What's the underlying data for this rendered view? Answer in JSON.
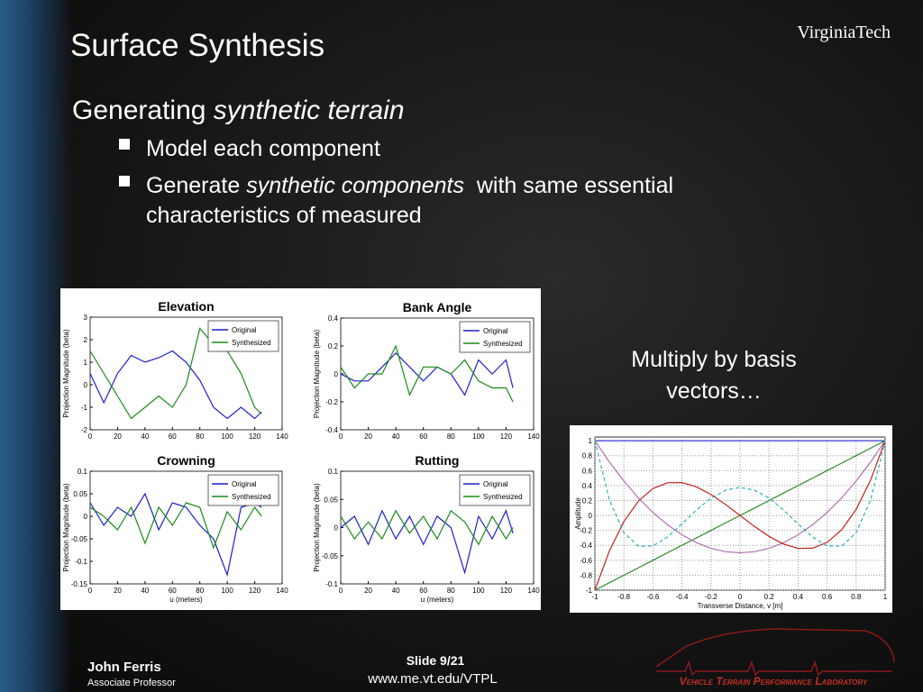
{
  "header": {
    "title": "Surface Synthesis",
    "logo": "VirginiaTech"
  },
  "body": {
    "heading": {
      "plain": "Generating ",
      "italic": "synthetic terrain"
    },
    "bullets": [
      {
        "text": "Model each component"
      },
      {
        "before": "Generate ",
        "italic": "synthetic components",
        "after": "  with same essential",
        "line2": "characteristics of measured"
      }
    ]
  },
  "callout": [
    "Multiply by basis",
    "vectors…"
  ],
  "chart_data": [
    {
      "type": "line",
      "title": "Elevation",
      "ylabel": "Projection Magnitude (beta)",
      "x": [
        0,
        10,
        20,
        30,
        40,
        50,
        60,
        70,
        80,
        90,
        100,
        110,
        120,
        125
      ],
      "series": [
        {
          "name": "Original",
          "color": "#1f1fd0",
          "values": [
            0.5,
            -0.8,
            0.5,
            1.3,
            1.0,
            1.2,
            1.5,
            1.0,
            0.2,
            -1.0,
            -1.5,
            -1.0,
            -1.5,
            -1.2
          ]
        },
        {
          "name": "Synthesized",
          "color": "#1a8a1a",
          "values": [
            1.5,
            0.5,
            -0.5,
            -1.5,
            -1.0,
            -0.5,
            -1.0,
            0,
            2.5,
            1.8,
            1.5,
            0.5,
            -1.0,
            -1.3
          ]
        }
      ],
      "xlim": [
        0,
        140
      ],
      "ylim": [
        -2,
        3
      ],
      "xticks": [
        0,
        20,
        40,
        60,
        80,
        100,
        120,
        140
      ],
      "yticks": [
        -2,
        -1,
        0,
        1,
        2,
        3
      ],
      "legend": "upper right"
    },
    {
      "type": "line",
      "title": "Bank Angle",
      "ylabel": "Projection Magnitude (beta)",
      "x": [
        0,
        10,
        20,
        30,
        40,
        50,
        60,
        70,
        80,
        90,
        100,
        110,
        120,
        125
      ],
      "series": [
        {
          "name": "Original",
          "color": "#1f1fd0",
          "values": [
            0,
            -0.05,
            -0.05,
            0.05,
            0.15,
            0.05,
            -0.05,
            0.05,
            0,
            -0.15,
            0.1,
            0,
            0.1,
            -0.1
          ]
        },
        {
          "name": "Synthesized",
          "color": "#1a8a1a",
          "values": [
            0.05,
            -0.1,
            0,
            0,
            0.2,
            -0.15,
            0.05,
            0.05,
            0,
            0.1,
            -0.05,
            -0.1,
            -0.1,
            -0.2
          ]
        }
      ],
      "xlim": [
        0,
        140
      ],
      "ylim": [
        -0.4,
        0.4
      ],
      "xticks": [
        0,
        20,
        40,
        60,
        80,
        100,
        120,
        140
      ],
      "yticks": [
        -0.4,
        -0.2,
        0,
        0.2,
        0.4
      ],
      "legend": "upper right"
    },
    {
      "type": "line",
      "title": "Crowning",
      "ylabel": "Projection Magnitude (beta)",
      "xlabel": "u (meters)",
      "x": [
        0,
        10,
        20,
        30,
        40,
        50,
        60,
        70,
        80,
        90,
        100,
        110,
        120,
        125
      ],
      "series": [
        {
          "name": "Original",
          "color": "#1f1fd0",
          "values": [
            0.03,
            -0.02,
            0.02,
            0,
            0.05,
            -0.03,
            0.03,
            0.02,
            -0.02,
            -0.05,
            -0.13,
            0.02,
            0.03,
            0.02
          ]
        },
        {
          "name": "Synthesized",
          "color": "#1a8a1a",
          "values": [
            0.02,
            0,
            -0.03,
            0.02,
            -0.06,
            0.02,
            -0.02,
            0.03,
            0.02,
            -0.07,
            0.01,
            -0.03,
            0.02,
            0
          ]
        }
      ],
      "xlim": [
        0,
        140
      ],
      "ylim": [
        -0.15,
        0.1
      ],
      "xticks": [
        0,
        20,
        40,
        60,
        80,
        100,
        120,
        140
      ],
      "yticks": [
        -0.15,
        -0.1,
        -0.05,
        0,
        0.05,
        0.1
      ],
      "legend": "upper right"
    },
    {
      "type": "line",
      "title": "Rutting",
      "ylabel": "Projection Magnitude (beta)",
      "xlabel": "u (meters)",
      "x": [
        0,
        10,
        20,
        30,
        40,
        50,
        60,
        70,
        80,
        90,
        100,
        110,
        120,
        125
      ],
      "series": [
        {
          "name": "Original",
          "color": "#1f1fd0",
          "values": [
            0,
            0.02,
            -0.03,
            0.03,
            -0.02,
            0.02,
            -0.03,
            0.02,
            0,
            -0.08,
            0.02,
            -0.02,
            0.03,
            -0.01
          ]
        },
        {
          "name": "Synthesized",
          "color": "#1a8a1a",
          "values": [
            0.02,
            -0.02,
            0.01,
            -0.02,
            0.03,
            -0.01,
            0.02,
            -0.02,
            0.03,
            0.01,
            -0.03,
            0.02,
            -0.02,
            0
          ]
        }
      ],
      "xlim": [
        0,
        140
      ],
      "ylim": [
        -0.1,
        0.1
      ],
      "xticks": [
        0,
        20,
        40,
        60,
        80,
        100,
        120,
        140
      ],
      "yticks": [
        -0.1,
        -0.05,
        0,
        0.05,
        0.1
      ],
      "legend": "upper right"
    },
    {
      "type": "line",
      "ylabel": "Amplitude",
      "xlabel": "Transverse Distance, v [m]",
      "x": [
        -1,
        -0.9,
        -0.8,
        -0.7,
        -0.6,
        -0.5,
        -0.4,
        -0.3,
        -0.2,
        -0.1,
        0,
        0.1,
        0.2,
        0.3,
        0.4,
        0.5,
        0.6,
        0.7,
        0.8,
        0.9,
        1
      ],
      "series": [
        {
          "color": "#3a3ad8",
          "values": [
            1,
            1,
            1,
            1,
            1,
            1,
            1,
            1,
            1,
            1,
            1,
            1,
            1,
            1,
            1,
            1,
            1,
            1,
            1,
            1,
            1
          ]
        },
        {
          "color": "#2a8a2a",
          "values": [
            -1,
            -0.9,
            -0.8,
            -0.7,
            -0.6,
            -0.5,
            -0.4,
            -0.3,
            -0.2,
            -0.1,
            0,
            0.1,
            0.2,
            0.3,
            0.4,
            0.5,
            0.6,
            0.7,
            0.8,
            0.9,
            1
          ]
        },
        {
          "color": "#b070b0",
          "values": [
            1,
            0.715,
            0.46,
            0.235,
            0.04,
            -0.125,
            -0.26,
            -0.365,
            -0.44,
            -0.485,
            -0.5,
            -0.485,
            -0.44,
            -0.365,
            -0.26,
            -0.125,
            0.04,
            0.235,
            0.46,
            0.715,
            1
          ]
        },
        {
          "color": "#c02020",
          "values": [
            -1,
            -0.473,
            -0.08,
            0.193,
            0.36,
            0.438,
            0.44,
            0.383,
            0.28,
            0.148,
            0,
            -0.148,
            -0.28,
            -0.383,
            -0.44,
            -0.438,
            -0.36,
            -0.193,
            0.08,
            0.473,
            1
          ]
        },
        {
          "color": "#30b0b0",
          "dashed": true,
          "values": [
            1,
            0.208,
            -0.233,
            -0.412,
            -0.408,
            -0.289,
            -0.113,
            0.073,
            0.232,
            0.338,
            0.375,
            0.338,
            0.232,
            0.073,
            -0.113,
            -0.289,
            -0.408,
            -0.412,
            -0.233,
            0.208,
            1
          ]
        }
      ],
      "xlim": [
        -1,
        1
      ],
      "ylim": [
        -1,
        1.05
      ],
      "xticks": [
        -1,
        -0.8,
        -0.6,
        -0.4,
        -0.2,
        0,
        0.2,
        0.4,
        0.6,
        0.8,
        1
      ],
      "yticks": [
        -1,
        -0.8,
        -0.6,
        -0.4,
        -0.2,
        0,
        0.2,
        0.4,
        0.6,
        0.8,
        1
      ],
      "grid": true
    }
  ],
  "footer": {
    "name": "John Ferris",
    "role": "Associate Professor",
    "slide": "Slide 9/21",
    "url": "www.me.vt.edu/VTPL",
    "lab": "Vehicle Terrain Performance Laboratory"
  }
}
